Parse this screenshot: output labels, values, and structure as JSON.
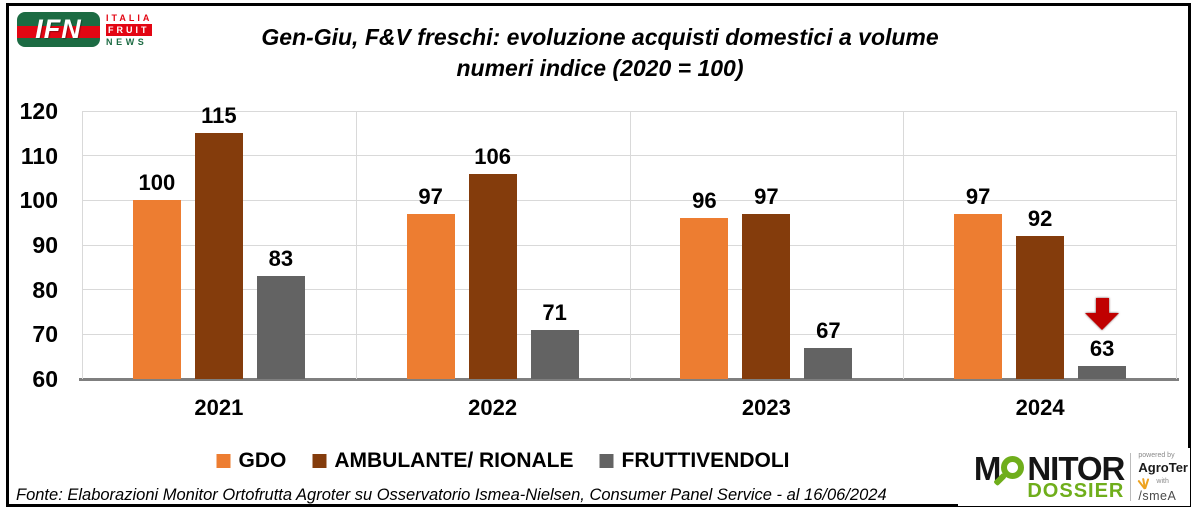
{
  "header": {
    "logo": {
      "abbr": "IFN",
      "line1": "ITALIA",
      "line2": "FRUIT",
      "line3": "NEWS"
    },
    "title_line1": "Gen-Giu, F&V freschi: evoluzione acquisti domestici a volume",
    "title_line2": "numeri indice (2020 = 100)"
  },
  "chart_data": {
    "type": "bar",
    "title": "Gen-Giu, F&V freschi: evoluzione acquisti domestici a volume — numeri indice (2020 = 100)",
    "categories": [
      "2021",
      "2022",
      "2023",
      "2024"
    ],
    "series": [
      {
        "name": "GDO",
        "color": "#ED7D31",
        "values": [
          100,
          97,
          96,
          97
        ]
      },
      {
        "name": "AMBULANTE/ RIONALE",
        "color": "#843C0C",
        "values": [
          115,
          106,
          97,
          92
        ]
      },
      {
        "name": "FRUTTIVENDOLI",
        "color": "#636363",
        "values": [
          83,
          71,
          67,
          63
        ]
      }
    ],
    "ylim": [
      60,
      120
    ],
    "yticks": [
      60,
      70,
      80,
      90,
      100,
      110,
      120
    ],
    "grid": true,
    "legend_position": "bottom",
    "annotations": [
      {
        "type": "down-arrow",
        "category": "2024",
        "series": "FRUTTIVENDOLI",
        "color": "#C00000"
      }
    ]
  },
  "footer": {
    "source": "Fonte: Elaborazioni Monitor Ortofrutta Agroter su Osservatorio Ismea-Nielsen, Consumer Panel Service - al 16/06/2024"
  },
  "branding": {
    "monitor_m": "M",
    "monitor_rest": "NITOR",
    "dossier": "DOSSIER",
    "powered_by": "powered by",
    "agroter": "AgroTer",
    "with": "with",
    "ismea": "/smeA"
  },
  "colors": {
    "grid": "#D9D9D9",
    "baseline": "#7F7F7F",
    "arrow_red": "#C00000"
  }
}
